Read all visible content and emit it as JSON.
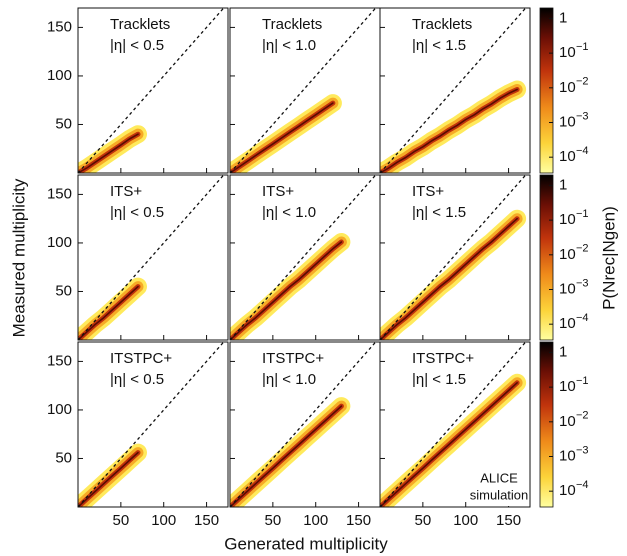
{
  "chart_data": {
    "type": "heatmap",
    "x_label": "Generated multiplicity",
    "y_label": "Measured multiplicity",
    "colorbar_label": "P(Nrec|Ngen)",
    "annotation": [
      "ALICE",
      "simulation"
    ],
    "xlim": [
      0,
      175
    ],
    "ylim": [
      0,
      170
    ],
    "xticks": [
      50,
      100,
      150
    ],
    "yticks": [
      50,
      100,
      150
    ],
    "clim": [
      3.5e-05,
      2
    ],
    "log_color": true,
    "cticks": [
      {
        "value": 1,
        "label": "1"
      },
      {
        "value": 0.1,
        "label": "10",
        "exponent": "−1"
      },
      {
        "value": 0.01,
        "label": "10",
        "exponent": "−2"
      },
      {
        "value": 0.001,
        "label": "10",
        "exponent": "−3"
      },
      {
        "value": 0.0001,
        "label": "10",
        "exponent": "−4"
      }
    ],
    "panels": [
      {
        "method": "Tracklets",
        "eta": "|η| < 0.5",
        "x": [
          0,
          10,
          20,
          30,
          40,
          50,
          60,
          70
        ],
        "y": [
          0,
          5,
          11,
          17,
          23,
          29,
          35,
          40
        ]
      },
      {
        "method": "Tracklets",
        "eta": "|η| < 1.0",
        "x": [
          0,
          10,
          20,
          30,
          40,
          50,
          60,
          70,
          80,
          90,
          100,
          110,
          120
        ],
        "y": [
          0,
          6,
          12,
          18,
          24,
          30,
          36,
          42,
          48,
          54,
          60,
          66,
          72
        ]
      },
      {
        "method": "Tracklets",
        "eta": "|η| < 1.5",
        "x": [
          0,
          10,
          20,
          30,
          40,
          50,
          60,
          70,
          80,
          90,
          100,
          110,
          120,
          130,
          140,
          150,
          160
        ],
        "y": [
          0,
          5,
          11,
          16,
          22,
          27,
          33,
          38,
          44,
          49,
          55,
          60,
          66,
          71,
          77,
          82,
          86
        ]
      },
      {
        "method": "ITS+",
        "eta": "|η| < 0.5",
        "x": [
          0,
          10,
          20,
          30,
          40,
          50,
          60,
          70
        ],
        "y": [
          0,
          8,
          16,
          23,
          31,
          39,
          47,
          55
        ]
      },
      {
        "method": "ITS+",
        "eta": "|η| < 1.0",
        "x": [
          0,
          10,
          20,
          30,
          40,
          50,
          60,
          70,
          80,
          90,
          100,
          110,
          120,
          130
        ],
        "y": [
          0,
          8,
          16,
          23,
          31,
          39,
          47,
          55,
          62,
          70,
          78,
          86,
          94,
          101
        ]
      },
      {
        "method": "ITS+",
        "eta": "|η| < 1.5",
        "x": [
          0,
          10,
          20,
          30,
          40,
          50,
          60,
          70,
          80,
          90,
          100,
          110,
          120,
          130,
          140,
          150,
          160
        ],
        "y": [
          0,
          8,
          16,
          23,
          31,
          39,
          47,
          55,
          62,
          70,
          78,
          86,
          94,
          101,
          109,
          117,
          125
        ]
      },
      {
        "method": "ITSTPC+",
        "eta": "|η| < 0.5",
        "x": [
          0,
          10,
          20,
          30,
          40,
          50,
          60,
          70
        ],
        "y": [
          0,
          8,
          16,
          24,
          32,
          40,
          48,
          56
        ]
      },
      {
        "method": "ITSTPC+",
        "eta": "|η| < 1.0",
        "x": [
          0,
          10,
          20,
          30,
          40,
          50,
          60,
          70,
          80,
          90,
          100,
          110,
          120,
          130
        ],
        "y": [
          0,
          8,
          16,
          24,
          32,
          40,
          48,
          56,
          64,
          72,
          80,
          88,
          96,
          104
        ]
      },
      {
        "method": "ITSTPC+",
        "eta": "|η| < 1.5",
        "x": [
          0,
          10,
          20,
          30,
          40,
          50,
          60,
          70,
          80,
          90,
          100,
          110,
          120,
          130,
          140,
          150,
          160
        ],
        "y": [
          0,
          8,
          16,
          24,
          32,
          40,
          48,
          56,
          64,
          72,
          80,
          88,
          96,
          104,
          112,
          120,
          128
        ]
      }
    ]
  }
}
